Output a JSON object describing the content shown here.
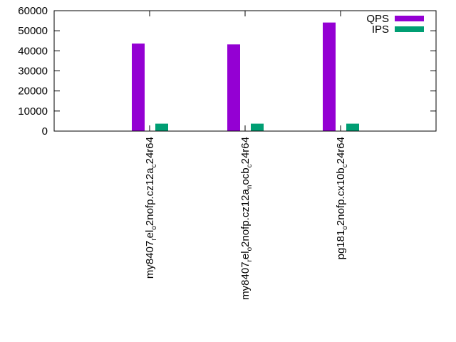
{
  "chart_data": {
    "type": "bar",
    "title": "",
    "xlabel": "",
    "ylabel": "",
    "ylim": [
      0,
      60000
    ],
    "yticks": [
      "0",
      "10000",
      "20000",
      "30000",
      "40000",
      "50000",
      "60000"
    ],
    "legend_position": "top-right",
    "categories": [
      {
        "base": "my8407",
        "parts": [
          [
            "r",
            "sub"
          ],
          [
            "el",
            "base"
          ],
          [
            "o",
            "sub"
          ],
          [
            "2nofp.cz12a",
            "base"
          ],
          [
            "c",
            "sub"
          ],
          [
            "24r64",
            "base"
          ]
        ]
      },
      {
        "base": "my8407",
        "parts": [
          [
            "r",
            "sub"
          ],
          [
            "el",
            "base"
          ],
          [
            "o",
            "sub"
          ],
          [
            "2nofp.cz12a",
            "base"
          ],
          [
            "n",
            "sub"
          ],
          [
            "ocb",
            "base"
          ],
          [
            "c",
            "sub"
          ],
          [
            "24r64",
            "base"
          ]
        ]
      },
      {
        "base": "pg181",
        "parts": [
          [
            "o",
            "sub"
          ],
          [
            "2nofp.cx10b",
            "base"
          ],
          [
            "c",
            "sub"
          ],
          [
            "24r64",
            "base"
          ]
        ]
      }
    ],
    "series": [
      {
        "name": "QPS",
        "color": "#9400d3",
        "values": [
          43600,
          43200,
          54100
        ]
      },
      {
        "name": "IPS",
        "color": "#009e73",
        "values": [
          3700,
          3700,
          3700
        ]
      }
    ]
  }
}
